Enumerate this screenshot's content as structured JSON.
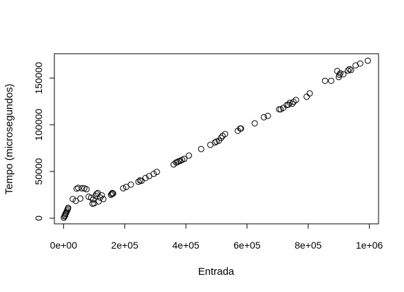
{
  "chart_data": {
    "type": "scatter",
    "title": "",
    "xlabel": "Entrada",
    "ylabel": "Tempo (microsegundos)",
    "xlim": [
      -30000,
      1030000
    ],
    "ylim": [
      -6000,
      176000
    ],
    "grid": false,
    "legend": "none",
    "marker_color": "#000000",
    "x_ticks": [
      {
        "value": 0,
        "label": "0e+00"
      },
      {
        "value": 200000,
        "label": "2e+05"
      },
      {
        "value": 400000,
        "label": "4e+05"
      },
      {
        "value": 600000,
        "label": "6e+05"
      },
      {
        "value": 800000,
        "label": "8e+05"
      },
      {
        "value": 1000000,
        "label": "1e+06"
      }
    ],
    "y_ticks": [
      {
        "value": 0,
        "label": "0"
      },
      {
        "value": 50000,
        "label": "50000"
      },
      {
        "value": 100000,
        "label": "100000"
      },
      {
        "value": 150000,
        "label": "150000"
      }
    ],
    "points": [
      [
        1000,
        500
      ],
      [
        3000,
        2000
      ],
      [
        5000,
        3000
      ],
      [
        6000,
        4500
      ],
      [
        8000,
        5500
      ],
      [
        10000,
        7000
      ],
      [
        12000,
        8500
      ],
      [
        14000,
        10000
      ],
      [
        15000,
        11000
      ],
      [
        30000,
        20500
      ],
      [
        40000,
        18500
      ],
      [
        43000,
        31500
      ],
      [
        48000,
        32500
      ],
      [
        55000,
        21000
      ],
      [
        60000,
        32000
      ],
      [
        68000,
        32000
      ],
      [
        75000,
        31000
      ],
      [
        82000,
        23000
      ],
      [
        90000,
        22000
      ],
      [
        95000,
        15500
      ],
      [
        97000,
        20000
      ],
      [
        100000,
        16000
      ],
      [
        105000,
        24000
      ],
      [
        108000,
        26000
      ],
      [
        112000,
        27000
      ],
      [
        115000,
        18000
      ],
      [
        120000,
        22000
      ],
      [
        125000,
        24500
      ],
      [
        130000,
        20500
      ],
      [
        155000,
        25000
      ],
      [
        158000,
        26000
      ],
      [
        160000,
        27000
      ],
      [
        162000,
        26500
      ],
      [
        195000,
        32000
      ],
      [
        205000,
        33500
      ],
      [
        220000,
        36000
      ],
      [
        245000,
        39000
      ],
      [
        250000,
        40500
      ],
      [
        255000,
        40000
      ],
      [
        268000,
        43000
      ],
      [
        280000,
        45000
      ],
      [
        295000,
        47500
      ],
      [
        305000,
        49500
      ],
      [
        360000,
        57500
      ],
      [
        368000,
        59500
      ],
      [
        372000,
        60000
      ],
      [
        377000,
        61000
      ],
      [
        382000,
        61500
      ],
      [
        388000,
        62500
      ],
      [
        395000,
        63500
      ],
      [
        410000,
        67000
      ],
      [
        450000,
        74000
      ],
      [
        480000,
        78500
      ],
      [
        495000,
        81000
      ],
      [
        500000,
        82000
      ],
      [
        508000,
        83000
      ],
      [
        515000,
        86000
      ],
      [
        520000,
        88000
      ],
      [
        528000,
        90000
      ],
      [
        570000,
        93500
      ],
      [
        578000,
        96000
      ],
      [
        580000,
        96000
      ],
      [
        625000,
        101500
      ],
      [
        655000,
        108000
      ],
      [
        668000,
        109500
      ],
      [
        705000,
        116500
      ],
      [
        710000,
        116500
      ],
      [
        718000,
        118000
      ],
      [
        730000,
        121000
      ],
      [
        735000,
        121500
      ],
      [
        740000,
        123500
      ],
      [
        748000,
        122500
      ],
      [
        752000,
        124500
      ],
      [
        760000,
        126500
      ],
      [
        795000,
        130000
      ],
      [
        805000,
        133500
      ],
      [
        855000,
        147000
      ],
      [
        875000,
        147000
      ],
      [
        895000,
        157500
      ],
      [
        900000,
        151000
      ],
      [
        902000,
        153500
      ],
      [
        905000,
        155000
      ],
      [
        915000,
        154000
      ],
      [
        930000,
        158000
      ],
      [
        935000,
        159500
      ],
      [
        940000,
        158500
      ],
      [
        955000,
        163500
      ],
      [
        970000,
        165500
      ],
      [
        995000,
        168500
      ]
    ]
  }
}
